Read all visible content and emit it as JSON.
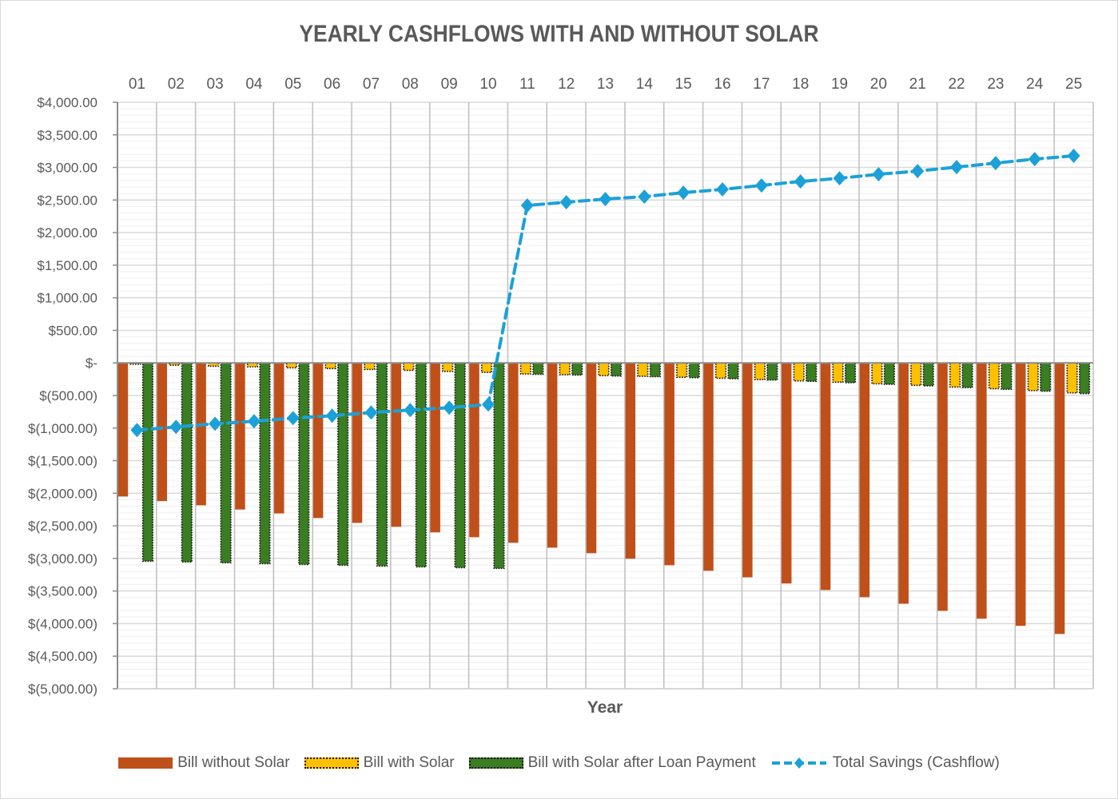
{
  "chart_data": {
    "type": "bar",
    "title": "YEARLY CASHFLOWS WITH AND WITHOUT SOLAR",
    "xlabel": "Year",
    "ylabel": "",
    "ylim": [
      -5000,
      4000
    ],
    "ytick_step": 500,
    "yticks": [
      "$4,000.00",
      "$3,500.00",
      "$3,000.00",
      "$2,500.00",
      "$2,000.00",
      "$1,500.00",
      "$1,000.00",
      "$500.00",
      "$-",
      "$(500.00)",
      "$(1,000.00)",
      "$(1,500.00)",
      "$(2,000.00)",
      "$(2,500.00)",
      "$(3,000.00)",
      "$(3,500.00)",
      "$(4,000.00)",
      "$(4,500.00)",
      "$(5,000.00)"
    ],
    "x_axis_position": "top",
    "grid": true,
    "legend_position": "bottom",
    "categories": [
      "01",
      "02",
      "03",
      "04",
      "05",
      "06",
      "07",
      "08",
      "09",
      "10",
      "11",
      "12",
      "13",
      "14",
      "15",
      "16",
      "17",
      "18",
      "19",
      "20",
      "21",
      "22",
      "23",
      "24",
      "25"
    ],
    "series": [
      {
        "name": "Bill without Solar",
        "type": "bar",
        "color": "#C0501A",
        "values": [
          -2050,
          -2120,
          -2185,
          -2250,
          -2310,
          -2380,
          -2455,
          -2515,
          -2600,
          -2675,
          -2760,
          -2835,
          -2920,
          -3005,
          -3105,
          -3190,
          -3290,
          -3385,
          -3485,
          -3595,
          -3695,
          -3805,
          -3925,
          -4035,
          -4160
        ]
      },
      {
        "name": "Bill with Solar",
        "type": "bar",
        "color": "#FFC000",
        "values": [
          -20,
          -35,
          -50,
          -60,
          -75,
          -85,
          -100,
          -115,
          -130,
          -145,
          -170,
          -180,
          -195,
          -205,
          -220,
          -235,
          -255,
          -275,
          -295,
          -320,
          -345,
          -370,
          -395,
          -425,
          -460
        ]
      },
      {
        "name": "Bill with Solar after Loan Payment",
        "type": "bar",
        "color": "#3A7D22",
        "values": [
          -3043,
          -3055,
          -3067,
          -3080,
          -3092,
          -3105,
          -3117,
          -3130,
          -3141,
          -3153,
          -175,
          -185,
          -200,
          -212,
          -226,
          -242,
          -262,
          -282,
          -303,
          -328,
          -352,
          -378,
          -404,
          -434,
          -470
        ]
      },
      {
        "name": "Total Savings (Cashflow)",
        "type": "line",
        "color": "#1BA1D8",
        "values": [
          -1031,
          -982,
          -933,
          -896,
          -847,
          -810,
          -761,
          -724,
          -687,
          -638,
          2417,
          2466,
          2515,
          2552,
          2613,
          2663,
          2724,
          2785,
          2834,
          2895,
          2944,
          3005,
          3067,
          3128,
          3178
        ]
      }
    ]
  }
}
